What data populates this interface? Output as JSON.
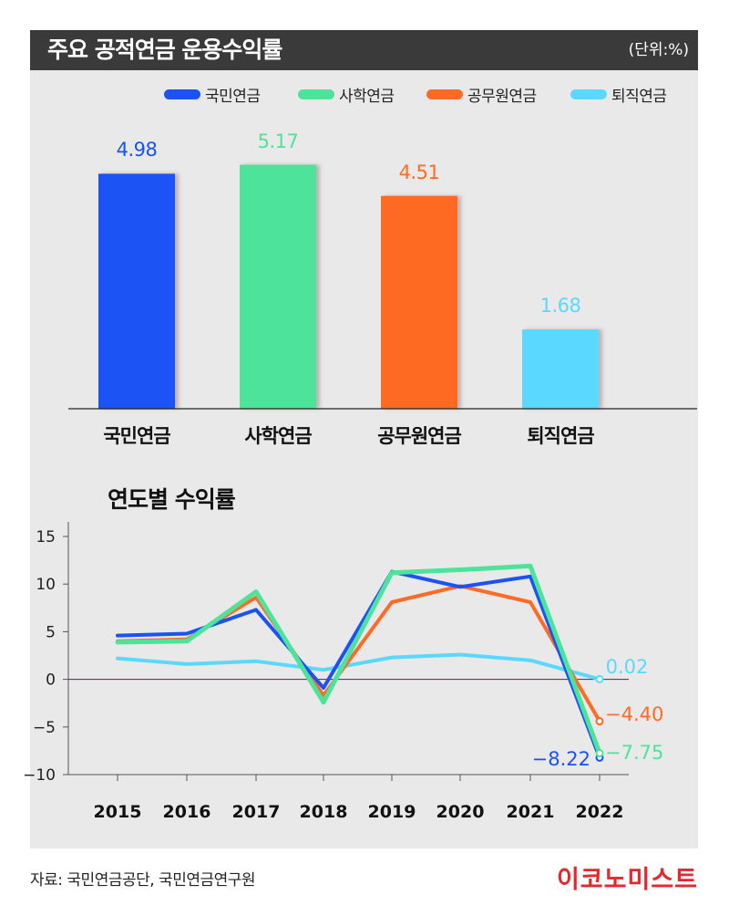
{
  "header": {
    "title": "주요 공적연금 운용수익률",
    "unit": "(단위:%)"
  },
  "colors": {
    "national": "#1a52f5",
    "private_school": "#4de39a",
    "civil_servant": "#ff6a24",
    "retirement": "#5ad8ff",
    "title_bar": "#3a3a3a",
    "panel": "#e9e9e9",
    "brand": "#e8262c"
  },
  "legend": [
    "국민연금",
    "사학연금",
    "공무원연금",
    "퇴직연금"
  ],
  "chart_data": [
    {
      "type": "bar",
      "title": "주요 공적연금 운용수익률",
      "categories": [
        "국민연금",
        "사학연금",
        "공무원연금",
        "퇴직연금"
      ],
      "values": [
        4.98,
        5.17,
        4.51,
        1.68
      ],
      "value_labels": [
        "4.98",
        "5.17",
        "4.51",
        "1.68"
      ],
      "ylim": [
        0,
        5.8
      ],
      "grid": false,
      "legend_position": "top-right"
    },
    {
      "type": "line",
      "title": "연도별 수익률",
      "x": [
        "2015",
        "2016",
        "2017",
        "2018",
        "2019",
        "2020",
        "2021",
        "2022"
      ],
      "yticks": [
        "15",
        "10",
        "5",
        "0",
        "−5",
        "−10"
      ],
      "ylim": [
        -10,
        15
      ],
      "grid": false,
      "series": [
        {
          "name": "퇴직연금",
          "values": [
            2.2,
            1.6,
            1.9,
            1.0,
            2.3,
            2.6,
            2.0,
            0.02
          ]
        },
        {
          "name": "공무원연금",
          "values": [
            4.0,
            4.2,
            8.6,
            -1.7,
            8.1,
            9.8,
            8.1,
            -4.4
          ]
        },
        {
          "name": "국민연금",
          "values": [
            4.6,
            4.8,
            7.3,
            -0.9,
            11.3,
            9.7,
            10.8,
            -8.22
          ]
        },
        {
          "name": "사학연금",
          "values": [
            3.9,
            4.0,
            9.2,
            -2.4,
            11.2,
            11.5,
            11.9,
            -7.75
          ]
        }
      ],
      "end_labels": [
        "0.02",
        "−4.40",
        "−8.22",
        "−7.75"
      ]
    }
  ],
  "footer": {
    "source": "자료: 국민연금공단, 국민연금연구원",
    "brand": "이코노미스트"
  }
}
